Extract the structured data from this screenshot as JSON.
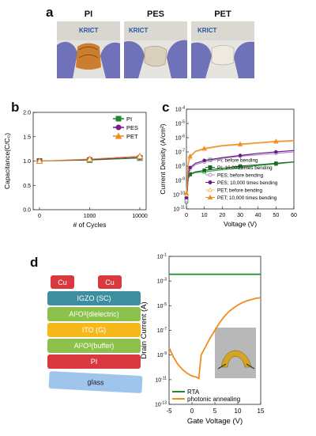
{
  "panel_a": {
    "label": "a",
    "photos": [
      {
        "title": "PI",
        "brand": "KRICT"
      },
      {
        "title": "PES",
        "brand": "KRICT"
      },
      {
        "title": "PET",
        "brand": "KRICT"
      }
    ]
  },
  "panel_b": {
    "label": "b"
  },
  "panel_c": {
    "label": "c"
  },
  "panel_d": {
    "label": "d",
    "stack": {
      "contacts": [
        "Cu",
        "Cu"
      ],
      "layers": [
        {
          "text": "IGZO (SC)",
          "color": "#3d8e9e"
        },
        {
          "pre": "Al",
          "sub": "2",
          "mid": "O",
          "sub2": "3",
          "post": " (dielectric)",
          "color": "#8cc24b"
        },
        {
          "text": "ITO (G)",
          "color": "#f7b81c"
        },
        {
          "pre": "Al",
          "sub": "2",
          "mid": "O",
          "sub2": "3",
          "post": " (buffer)",
          "color": "#8cc24b"
        },
        {
          "text": "PI",
          "color": "#d9383f"
        }
      ],
      "substrate": "glass"
    }
  },
  "chart_data": [
    {
      "type": "line",
      "panel": "b",
      "xlabel": "# of Cycles",
      "ylabel": "Capacitance(C/C₀)",
      "categories": [
        "0",
        "1000",
        "10000"
      ],
      "ylim": [
        0.0,
        2.0
      ],
      "yticks": [
        "0.0",
        "0.5",
        "1.0",
        "1.5",
        "2.0"
      ],
      "legend_position": "top-right",
      "series": [
        {
          "name": "PI",
          "color": "#1f8a2c",
          "marker": "square",
          "values": [
            1.0,
            1.02,
            1.06
          ]
        },
        {
          "name": "PES",
          "color": "#7a1f8a",
          "marker": "circle",
          "values": [
            1.0,
            1.03,
            1.08
          ]
        },
        {
          "name": "PET",
          "color": "#f28a1e",
          "marker": "triangle",
          "values": [
            1.0,
            1.04,
            1.1
          ]
        }
      ]
    },
    {
      "type": "line",
      "panel": "c",
      "xlabel": "Voltage (V)",
      "ylabel": "Current Density (A/cm²)",
      "xlim": [
        0,
        60
      ],
      "xticks": [
        0,
        10,
        20,
        30,
        40,
        50,
        60
      ],
      "ylog": true,
      "ylim_exp": [
        -11,
        -4
      ],
      "legend_position": "bottom-right",
      "series": [
        {
          "name": "PI; before bending",
          "color": "#3fa34d",
          "marker": "open-square",
          "x": [
            0,
            1,
            2,
            5,
            10,
            20,
            30,
            40,
            50,
            60
          ],
          "y_exp": [
            -10.5,
            -8.9,
            -8.6,
            -8.45,
            -8.4,
            -8.25,
            -8.1,
            -7.95,
            -7.85,
            -7.7
          ]
        },
        {
          "name": "PI; 10,000 times bending",
          "color": "#1a6b22",
          "marker": "square",
          "x": [
            0,
            1,
            2,
            5,
            10,
            20,
            30,
            40,
            50,
            60
          ],
          "y_exp": [
            -10.3,
            -8.8,
            -8.55,
            -8.4,
            -8.3,
            -8.15,
            -8.0,
            -7.9,
            -7.8,
            -7.7
          ]
        },
        {
          "name": "PES; before bending",
          "color": "#b58ac9",
          "marker": "open-circle",
          "x": [
            0,
            1,
            2,
            5,
            10,
            20,
            30,
            40,
            50,
            60
          ],
          "y_exp": [
            -10.4,
            -8.6,
            -8.2,
            -7.9,
            -7.7,
            -7.45,
            -7.3,
            -7.2,
            -7.1,
            -7.0
          ]
        },
        {
          "name": "PES; 10,000 times bending",
          "color": "#6a1b8a",
          "marker": "circle",
          "x": [
            0,
            1,
            2,
            5,
            10,
            20,
            30,
            40,
            50,
            60
          ],
          "y_exp": [
            -10.2,
            -8.5,
            -8.1,
            -7.8,
            -7.6,
            -7.4,
            -7.25,
            -7.1,
            -7.0,
            -6.9
          ]
        },
        {
          "name": "PET; before bending",
          "color": "#f6c08a",
          "marker": "open-triangle",
          "x": [
            0,
            1,
            2,
            5,
            10,
            20,
            30,
            40,
            50,
            60
          ],
          "y_exp": [
            -10.0,
            -7.9,
            -7.4,
            -7.0,
            -6.8,
            -6.6,
            -6.5,
            -6.4,
            -6.3,
            -6.25
          ]
        },
        {
          "name": "PET; 10,000 times bending",
          "color": "#f08c1e",
          "marker": "triangle",
          "x": [
            0,
            1,
            2,
            5,
            10,
            20,
            30,
            40,
            50,
            60
          ],
          "y_exp": [
            -9.9,
            -7.8,
            -7.3,
            -6.95,
            -6.75,
            -6.55,
            -6.45,
            -6.35,
            -6.25,
            -6.2
          ]
        }
      ]
    },
    {
      "type": "line",
      "panel": "d",
      "xlabel": "Gate Voltage (V)",
      "ylabel": "Drain Current (A)",
      "xlim": [
        -5,
        15
      ],
      "xticks": [
        -5,
        0,
        5,
        10,
        15
      ],
      "ylog": true,
      "ylim_exp": [
        -13,
        -1
      ],
      "yticks_exp": [
        -13,
        -11,
        -9,
        -7,
        -5,
        -3,
        -1
      ],
      "legend_position": "bottom-left",
      "series": [
        {
          "name": "RTA",
          "color": "#1f8a2c",
          "x": [
            -5,
            0,
            5,
            10,
            15
          ],
          "y_exp": [
            -2.45,
            -2.45,
            -2.45,
            -2.45,
            -2.45
          ]
        },
        {
          "name": "photonic annealing",
          "color": "#f28a1e",
          "x": [
            -5,
            -4,
            -3,
            -2,
            -1,
            0,
            1,
            1.5,
            2,
            3,
            4,
            5,
            6,
            7,
            8,
            9,
            10,
            11,
            12,
            13,
            14,
            15
          ],
          "y_exp": [
            -8.4,
            -9.2,
            -9.8,
            -10.2,
            -10.5,
            -10.7,
            -10.8,
            -10.9,
            -9.0,
            -8.3,
            -7.6,
            -7.0,
            -6.4,
            -5.9,
            -5.5,
            -5.2,
            -4.95,
            -4.75,
            -4.6,
            -4.5,
            -4.4,
            -4.35
          ]
        }
      ]
    }
  ]
}
